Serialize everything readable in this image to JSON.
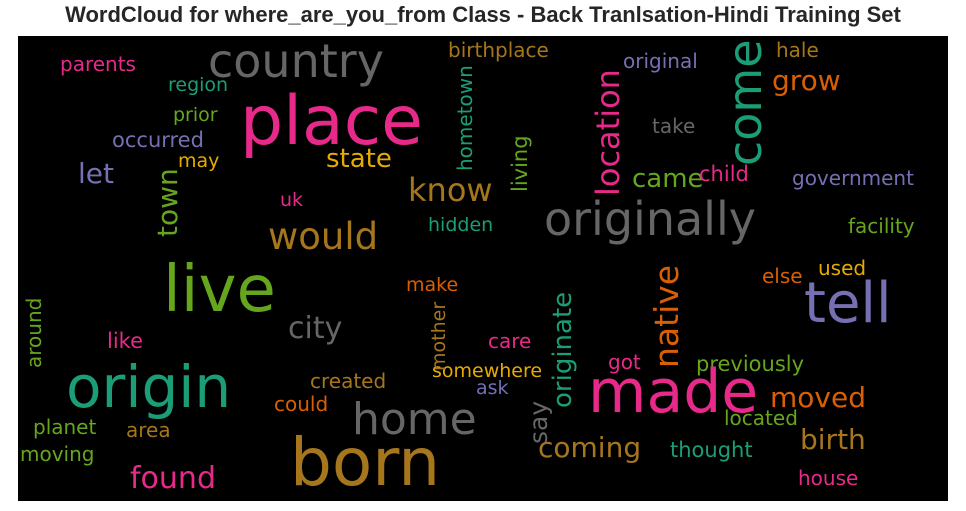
{
  "title": "WordCloud for where_are_you_from Class - Back Tranlsation-Hindi Training Set",
  "colors": {
    "pink": "#e7298a",
    "green": "#1b9e77",
    "olive": "#66a61e",
    "gold": "#a6761d",
    "orange": "#d95f02",
    "purple": "#7570b3",
    "yellow": "#e6ab02",
    "gray": "#666666"
  },
  "words": [
    "country",
    "place",
    "come",
    "location",
    "grow",
    "hale",
    "birthplace",
    "original",
    "parents",
    "region",
    "prior",
    "occurred",
    "may",
    "let",
    "hometown",
    "living",
    "take",
    "state",
    "know",
    "came",
    "child",
    "government",
    "town",
    "uk",
    "would",
    "originally",
    "hidden",
    "facility",
    "live",
    "tell",
    "city",
    "native",
    "originate",
    "else",
    "used",
    "make",
    "around",
    "like",
    "mother",
    "care",
    "got",
    "previously",
    "origin",
    "somewhere",
    "ask",
    "created",
    "made",
    "moved",
    "could",
    "say",
    "home",
    "planet",
    "area",
    "located",
    "born",
    "coming",
    "birth",
    "thought",
    "moving",
    "found",
    "house"
  ]
}
